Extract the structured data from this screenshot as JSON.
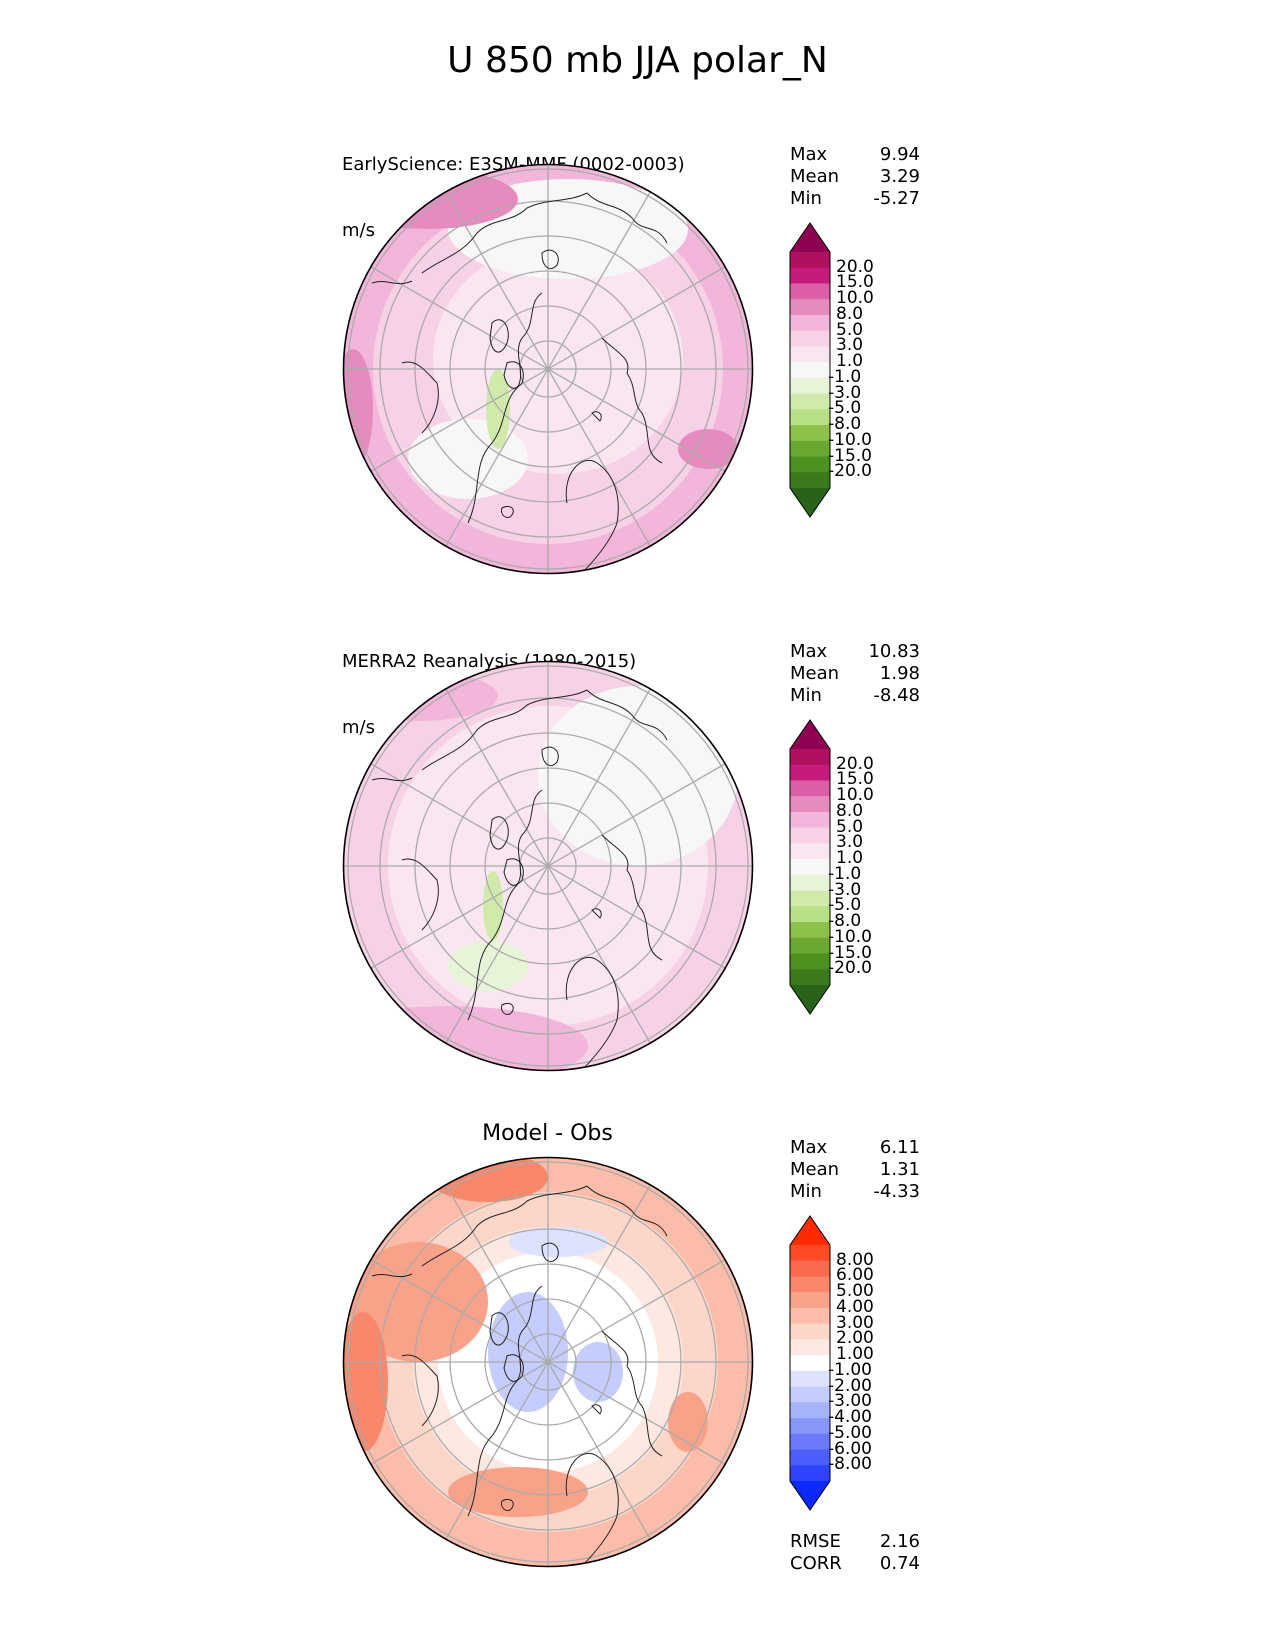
{
  "title": "U 850 mb JJA polar_N",
  "panels": [
    {
      "title": "EarlyScience: E3SM-MMF (0002-0003)",
      "units": "m/s",
      "stats": {
        "max_label": "Max",
        "max": "9.94",
        "mean_label": "Mean",
        "mean": "3.29",
        "min_label": "Min",
        "min": "-5.27"
      },
      "colorbar": "pg"
    },
    {
      "title": "MERRA2 Reanalysis (1980-2015)",
      "units": "m/s",
      "stats": {
        "max_label": "Max",
        "max": "10.83",
        "mean_label": "Mean",
        "mean": "1.98",
        "min_label": "Min",
        "min": "-8.48"
      },
      "colorbar": "pg"
    },
    {
      "title": "Model - Obs",
      "units": "",
      "stats": {
        "max_label": "Max",
        "max": "6.11",
        "mean_label": "Mean",
        "mean": "1.31",
        "min_label": "Min",
        "min": "-4.33"
      },
      "colorbar": "rb",
      "extra": {
        "rmse_label": "RMSE",
        "rmse": "2.16",
        "corr_label": "CORR",
        "corr": "0.74"
      }
    }
  ],
  "colorbars": {
    "pg": {
      "levels": [
        "20.0",
        "15.0",
        "10.0",
        "8.0",
        "5.0",
        "3.0",
        "1.0",
        "-1.0",
        "-3.0",
        "-5.0",
        "-8.0",
        "-10.0",
        "-15.0",
        "-20.0"
      ],
      "colors": [
        "#8e0152",
        "#b0105e",
        "#c51b7d",
        "#dc5ea4",
        "#e68bbe",
        "#f1b6da",
        "#f7d2e7",
        "#fae6f0",
        "#f7f7f7",
        "#e8f4d8",
        "#d0eaab",
        "#b8e186",
        "#8dc14b",
        "#6aa832",
        "#4d9221",
        "#3a7a1a",
        "#276419"
      ]
    },
    "rb": {
      "levels": [
        "8.00",
        "6.00",
        "5.00",
        "4.00",
        "3.00",
        "2.00",
        "1.00",
        "-1.00",
        "-2.00",
        "-3.00",
        "-4.00",
        "-5.00",
        "-6.00",
        "-8.00"
      ],
      "colors": [
        "#ff2a00",
        "#ff4a26",
        "#fa6a4c",
        "#f8876b",
        "#f9a28a",
        "#fbbdaa",
        "#fdd6ca",
        "#fee9e2",
        "#ffffff",
        "#dde3ff",
        "#c4cdfb",
        "#a6b3fa",
        "#8896f9",
        "#6a7afa",
        "#4c5efc",
        "#2e43fd",
        "#0a28ff"
      ]
    }
  },
  "chart_data": [
    {
      "type": "heatmap",
      "title": "EarlyScience: E3SM-MMF (0002-0003)",
      "units": "m/s",
      "projection": "polar north",
      "stats": {
        "max": 9.94,
        "mean": 3.29,
        "min": -5.27
      },
      "levels": [
        -20,
        -15,
        -10,
        -8,
        -5,
        -3,
        -1,
        1,
        3,
        5,
        8,
        10,
        15,
        20
      ]
    },
    {
      "type": "heatmap",
      "title": "MERRA2 Reanalysis (1980-2015)",
      "units": "m/s",
      "projection": "polar north",
      "stats": {
        "max": 10.83,
        "mean": 1.98,
        "min": -8.48
      },
      "levels": [
        -20,
        -15,
        -10,
        -8,
        -5,
        -3,
        -1,
        1,
        3,
        5,
        8,
        10,
        15,
        20
      ]
    },
    {
      "type": "heatmap",
      "title": "Model - Obs",
      "projection": "polar north",
      "stats": {
        "max": 6.11,
        "mean": 1.31,
        "min": -4.33,
        "rmse": 2.16,
        "corr": 0.74
      },
      "levels": [
        -8,
        -6,
        -5,
        -4,
        -3,
        -2,
        -1,
        1,
        2,
        3,
        4,
        5,
        6,
        8
      ]
    }
  ]
}
